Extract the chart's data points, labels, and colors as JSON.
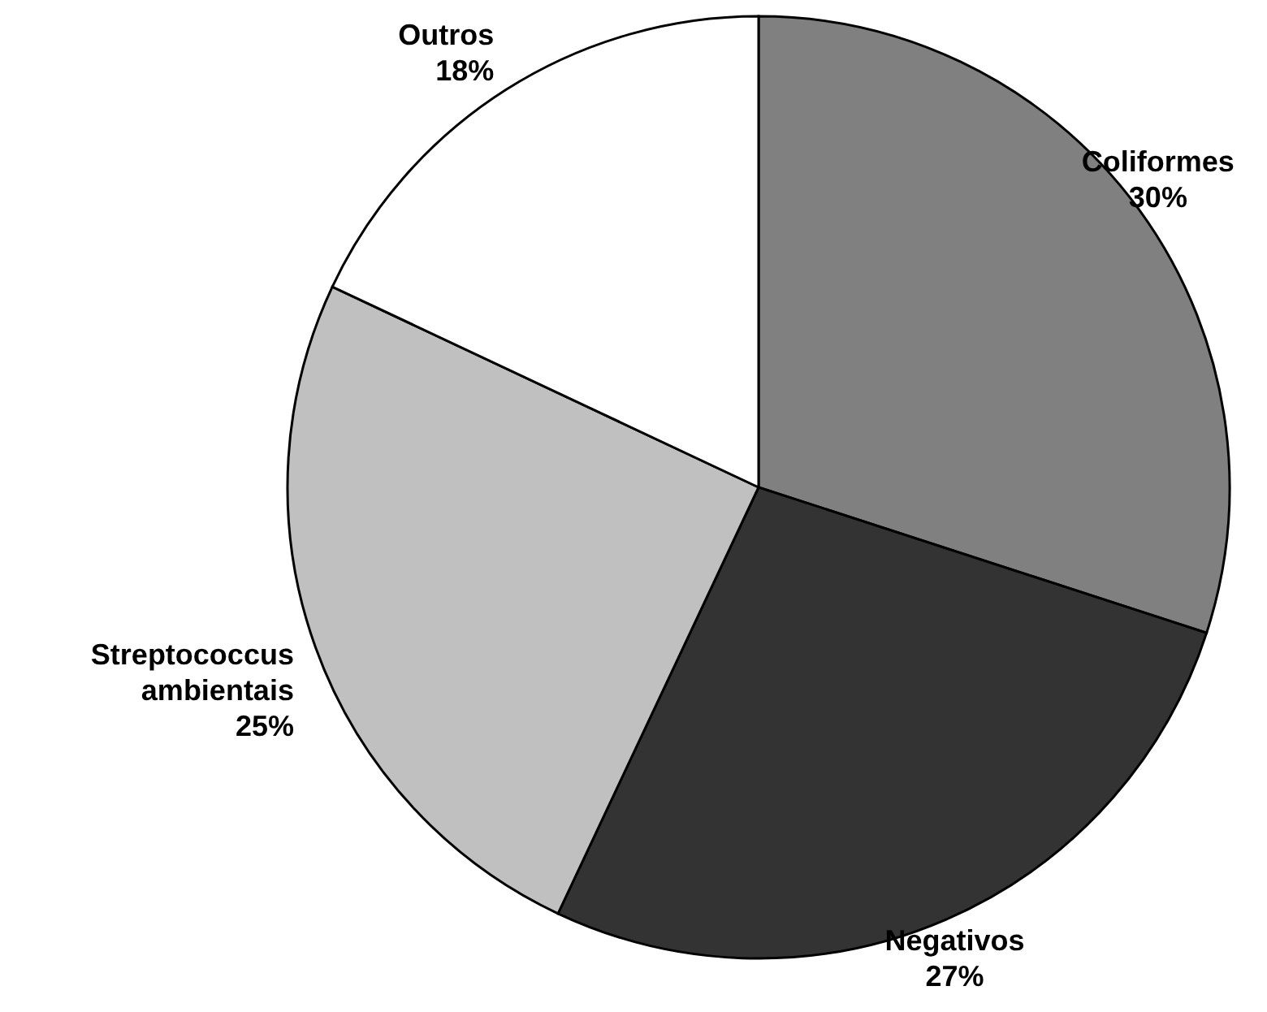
{
  "chart_data": {
    "type": "pie",
    "categories": [
      "Coliformes",
      "Negativos",
      "Streptococcus ambientais",
      "Outros"
    ],
    "values": [
      30,
      27,
      25,
      18
    ],
    "value_labels": [
      "30%",
      "27%",
      "25%",
      "18%"
    ],
    "colors": [
      "#808080",
      "#333333",
      "#c0c0c0",
      "#ffffff"
    ]
  }
}
